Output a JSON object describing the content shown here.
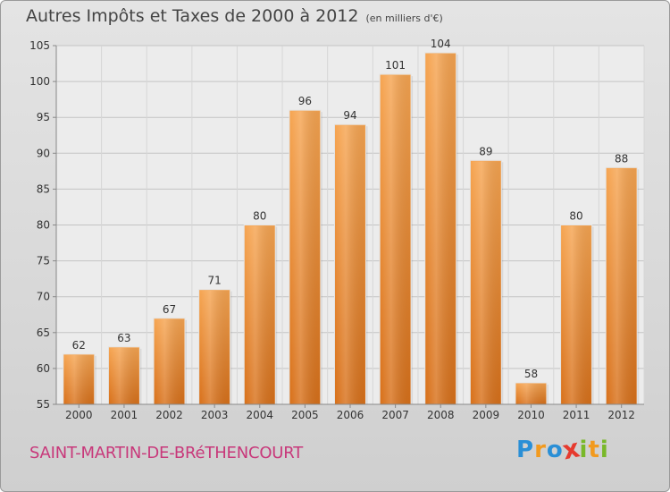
{
  "chart_data": {
    "type": "bar",
    "title": "Autres Impôts et Taxes de 2000 à 2012",
    "subtitle": "(en milliers d'€)",
    "categories": [
      "2000",
      "2001",
      "2002",
      "2003",
      "2004",
      "2005",
      "2006",
      "2007",
      "2008",
      "2009",
      "2010",
      "2011",
      "2012"
    ],
    "values": [
      62,
      63,
      67,
      71,
      80,
      96,
      94,
      101,
      104,
      89,
      58,
      80,
      88
    ],
    "ylim": [
      55,
      105
    ],
    "yticks": [
      55,
      60,
      65,
      70,
      75,
      80,
      85,
      90,
      95,
      100,
      105
    ],
    "grid": true,
    "bar_color": "#f0932f"
  },
  "footer": {
    "commune": "SAINT-MARTIN-DE-BRéTHENCOURT",
    "logo_letters": [
      {
        "ch": "P",
        "color": "#2a8fd6"
      },
      {
        "ch": "r",
        "color": "#f29a1e"
      },
      {
        "ch": "o",
        "color": "#2a8fd6"
      },
      {
        "ch": "x",
        "color": "#e63a2e"
      },
      {
        "ch": "i",
        "color": "#79b829"
      },
      {
        "ch": "t",
        "color": "#f29a1e"
      },
      {
        "ch": "i",
        "color": "#79b829"
      }
    ]
  }
}
